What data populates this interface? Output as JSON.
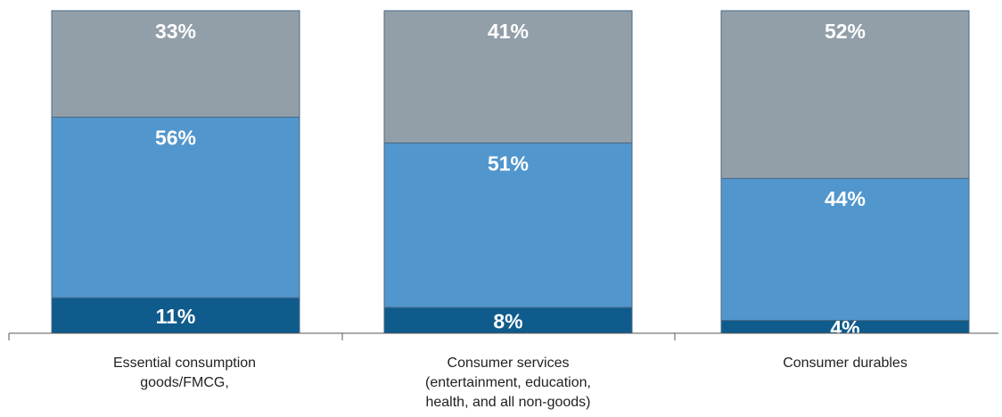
{
  "chart_data": {
    "type": "bar",
    "stacked": true,
    "categories": [
      [
        "Essential consumption",
        "goods/FMCG,"
      ],
      [
        "Consumer services",
        "(entertainment, education,",
        "health, and all non-goods)"
      ],
      [
        "Consumer durables"
      ]
    ],
    "series": [
      {
        "values": [
          11,
          8,
          4
        ],
        "labels": [
          "11%",
          "8%",
          "4%"
        ],
        "color": "#0f5b8c"
      },
      {
        "values": [
          56,
          51,
          44
        ],
        "labels": [
          "56%",
          "51%",
          "44%"
        ],
        "color": "#5196cc"
      },
      {
        "values": [
          33,
          41,
          52
        ],
        "labels": [
          "33%",
          "41%",
          "52%"
        ],
        "color": "#929fa9"
      }
    ],
    "ylim": [
      0,
      100
    ],
    "grid": false,
    "legend": false
  }
}
